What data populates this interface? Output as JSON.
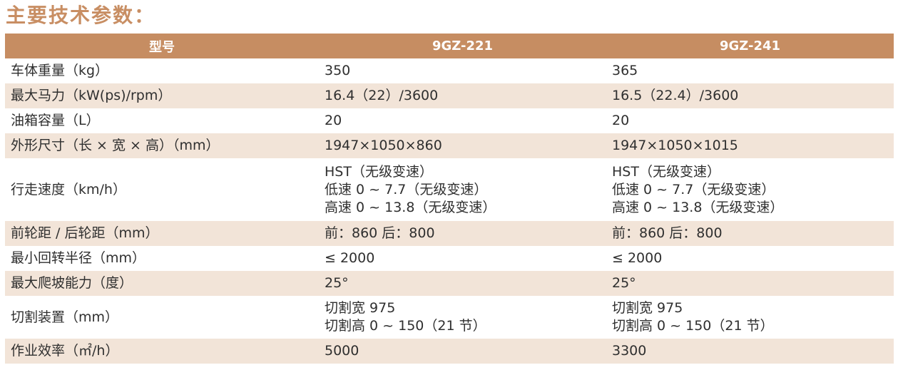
{
  "title": "主要技术参数：",
  "table": {
    "headers": [
      "型号",
      "9GZ-221",
      "9GZ-241"
    ],
    "rows": [
      {
        "label": "车体重量（kg）",
        "v1": [
          "350"
        ],
        "v2": [
          "365"
        ]
      },
      {
        "label": "最大马力（kW(ps)/rpm）",
        "v1": [
          "16.4（22）/3600"
        ],
        "v2": [
          "16.5（22.4）/3600"
        ]
      },
      {
        "label": "油箱容量（L）",
        "v1": [
          "20"
        ],
        "v2": [
          "20"
        ]
      },
      {
        "label": "外形尺寸（长 × 宽 × 高）（mm）",
        "v1": [
          "1947×1050×860"
        ],
        "v2": [
          "1947×1050×1015"
        ]
      },
      {
        "label": "行走速度（km/h）",
        "v1": [
          "HST（无级变速）",
          "低速 0 ~ 7.7（无级变速）",
          "高速 0 ~ 13.8（无级变速）"
        ],
        "v2": [
          "HST（无级变速）",
          "低速 0 ~ 7.7（无级变速）",
          "高速 0 ~ 13.8（无级变速）"
        ]
      },
      {
        "label": "前轮距 / 后轮距（mm）",
        "v1": [
          "前：860  后：800"
        ],
        "v2": [
          "前：860  后：800"
        ]
      },
      {
        "label": "最小回转半径（mm）",
        "v1": [
          "≤ 2000"
        ],
        "v2": [
          "≤ 2000"
        ]
      },
      {
        "label": "最大爬坡能力（度）",
        "v1": [
          "25°"
        ],
        "v2": [
          "25°"
        ]
      },
      {
        "label": "切割装置（mm）",
        "v1": [
          "切割宽 975",
          "切割高 0 ~ 150（21 节）"
        ],
        "v2": [
          "切割宽 975",
          "切割高 0 ~ 150（21 节）"
        ]
      },
      {
        "label": "作业效率（㎡/h）",
        "v1": [
          "5000"
        ],
        "v2": [
          "3300"
        ]
      }
    ]
  },
  "colors": {
    "accent": "#c68d62",
    "row_shade": "#f2e4d8",
    "title": "#c88e63"
  }
}
